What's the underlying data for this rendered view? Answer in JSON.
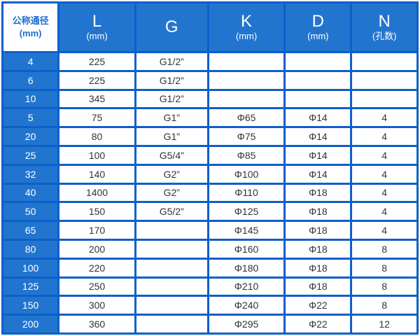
{
  "headers": [
    {
      "title": "公称通径",
      "unit": "(mm)"
    },
    {
      "title": "L",
      "unit": "(mm)"
    },
    {
      "title": "G",
      "unit": ""
    },
    {
      "title": "K",
      "unit": "(mm)"
    },
    {
      "title": "D",
      "unit": "(mm)"
    },
    {
      "title": "N",
      "unit": "(孔数)"
    }
  ],
  "rows": [
    [
      "4",
      "225",
      "G1/2”",
      "",
      "",
      ""
    ],
    [
      "6",
      "225",
      "G1/2”",
      "",
      "",
      ""
    ],
    [
      "10",
      "345",
      "G1/2”",
      "",
      "",
      ""
    ],
    [
      "5",
      "75",
      "G1”",
      "Φ65",
      "Φ14",
      "4"
    ],
    [
      "20",
      "80",
      "G1”",
      "Φ75",
      "Φ14",
      "4"
    ],
    [
      "25",
      "100",
      "G5/4”",
      "Φ85",
      "Φ14",
      "4"
    ],
    [
      "32",
      "140",
      "G2”",
      "Φ100",
      "Φ14",
      "4"
    ],
    [
      "40",
      "1400",
      "G2”",
      "Φ110",
      "Φ18",
      "4"
    ],
    [
      "50",
      "150",
      "G5/2”",
      "Φ125",
      "Φ18",
      "4"
    ],
    [
      "65",
      "170",
      "",
      "Φ145",
      "Φ18",
      "4"
    ],
    [
      "80",
      "200",
      "",
      "Φ160",
      "Φ18",
      "8"
    ],
    [
      "100",
      "220",
      "",
      "Φ180",
      "Φ18",
      "8"
    ],
    [
      "125",
      "250",
      "",
      "Φ210",
      "Φ18",
      "8"
    ],
    [
      "150",
      "300",
      "",
      "Φ240",
      "Φ22",
      "8"
    ],
    [
      "200",
      "360",
      "",
      "Φ295",
      "Φ22",
      "12"
    ]
  ],
  "colors": {
    "accent": "#2275cf",
    "grid": "#0d5fc9"
  }
}
